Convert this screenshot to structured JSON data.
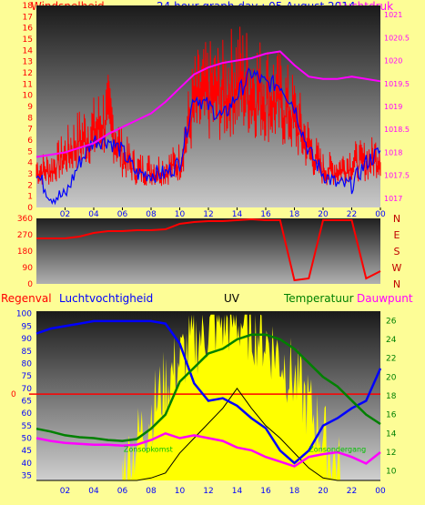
{
  "header": {
    "left_label": "Windsnelheid",
    "title": "24 hour graph day : 05 August 2014",
    "right_label": "Luchtdruk"
  },
  "bottom_header": {
    "rain": "Regenval",
    "humidity": "Luchtvochtigheid",
    "uv": "UV",
    "temperature": "Temperatuur",
    "dewpoint": "Dauwpunt"
  },
  "annotations": {
    "sunrise": "Zonsopkomst",
    "sunset": "Zonsondergang"
  },
  "colors": {
    "page_bg": "#fdfd96",
    "wind_speed": "#ff0000",
    "wind_avg": "#0000ff",
    "pressure": "#ff00ff",
    "wind_dir": "#ff0000",
    "humidity": "#0000ff",
    "uv": "#000000",
    "solar": "#ffff00",
    "temperature": "#008000",
    "dewpoint": "#ff00ff",
    "rain_line": "#ff0000"
  },
  "chart_data": [
    {
      "type": "line",
      "series_labels": [
        "Windsnelheid",
        "Luchtdruk"
      ],
      "x_ticks": [
        "02",
        "04",
        "06",
        "08",
        "10",
        "12",
        "14",
        "16",
        "18",
        "20",
        "22",
        "00"
      ],
      "y_left_ticks": [
        "0",
        "1",
        "2",
        "3",
        "4",
        "5",
        "6",
        "7",
        "8",
        "9",
        "10",
        "11",
        "12",
        "13",
        "14",
        "15",
        "16",
        "17",
        "18"
      ],
      "y_right_ticks": [
        "1017",
        "1017.5",
        "1018",
        "1018.5",
        "1019",
        "1019.5",
        "1020",
        "1020.5",
        "1021"
      ],
      "ylim_left": [
        0,
        18
      ],
      "ylim_right": [
        1016.8,
        1021.2
      ],
      "x": [
        0,
        1,
        2,
        3,
        4,
        5,
        6,
        7,
        8,
        9,
        10,
        11,
        12,
        13,
        14,
        15,
        16,
        17,
        18,
        19,
        20,
        21,
        22,
        23,
        24
      ],
      "series": [
        {
          "axis": "left",
          "values": [
            3,
            1,
            1,
            4,
            6,
            6,
            5,
            3,
            3,
            3,
            4,
            10,
            9,
            8,
            10,
            12,
            11,
            11,
            9,
            5,
            3,
            2,
            2,
            4,
            5
          ]
        },
        {
          "axis": "left",
          "values": [
            5,
            5,
            7,
            9,
            10,
            12,
            7,
            5,
            5,
            5,
            6,
            14,
            15,
            15,
            17,
            16,
            15,
            14,
            12,
            8,
            5,
            5,
            6,
            6,
            7
          ]
        },
        {
          "axis": "right",
          "values": [
            1017.9,
            1017.95,
            1018.0,
            1018.1,
            1018.2,
            1018.4,
            1018.55,
            1018.7,
            1018.85,
            1019.1,
            1019.4,
            1019.7,
            1019.85,
            1019.95,
            1020.0,
            1020.05,
            1020.15,
            1020.2,
            1019.9,
            1019.65,
            1019.6,
            1019.6,
            1019.65,
            1019.6,
            1019.55
          ]
        }
      ]
    },
    {
      "type": "line",
      "series_labels": [],
      "x_ticks": [],
      "y_ticks": [
        "0",
        "90",
        "180",
        "270",
        "360"
      ],
      "y_right_labels": [
        "N",
        "W",
        "S",
        "E",
        "N"
      ],
      "ylim": [
        0,
        360
      ],
      "x": [
        0,
        1,
        2,
        3,
        4,
        5,
        6,
        7,
        8,
        9,
        10,
        11,
        12,
        13,
        14,
        15,
        16,
        17,
        18,
        19,
        20,
        21,
        22,
        23,
        24
      ],
      "series": [
        {
          "values": [
            250,
            250,
            250,
            260,
            280,
            290,
            290,
            295,
            295,
            300,
            330,
            340,
            345,
            345,
            350,
            355,
            350,
            350,
            20,
            30,
            350,
            350,
            350,
            30,
            70
          ]
        }
      ]
    },
    {
      "type": "line",
      "series_labels": [
        "Regenval",
        "Luchtvochtigheid",
        "UV",
        "Temperatuur",
        "Dauwpunt"
      ],
      "x_ticks": [
        "02",
        "04",
        "06",
        "08",
        "10",
        "12",
        "14",
        "16",
        "18",
        "20",
        "22",
        "00"
      ],
      "y_left_ticks": [
        "35",
        "40",
        "45",
        "50",
        "55",
        "60",
        "65",
        "70",
        "75",
        "80",
        "85",
        "90",
        "95",
        "100"
      ],
      "y_right_ticks": [
        "10",
        "12",
        "14",
        "16",
        "18",
        "20",
        "22",
        "24",
        "26"
      ],
      "rain_value_label": "0",
      "ylim_left": [
        33,
        101
      ],
      "ylim_right": [
        9,
        27
      ],
      "x": [
        0,
        1,
        2,
        3,
        4,
        5,
        6,
        7,
        8,
        9,
        10,
        11,
        12,
        13,
        14,
        15,
        16,
        17,
        18,
        19,
        20,
        21,
        22,
        23,
        24
      ],
      "series": [
        {
          "name": "Luchtvochtigheid",
          "axis": "left",
          "values": [
            92,
            94,
            95,
            96,
            97,
            97,
            97,
            97,
            97,
            96,
            88,
            72,
            65,
            66,
            63,
            58,
            54,
            45,
            40,
            45,
            55,
            58,
            62,
            65,
            78
          ]
        },
        {
          "name": "Temperatuur",
          "axis": "right",
          "values": [
            14.5,
            14.2,
            13.8,
            13.6,
            13.5,
            13.3,
            13.2,
            13.4,
            14.5,
            16,
            19.5,
            21,
            22.5,
            23,
            24,
            24.5,
            24.5,
            24,
            23,
            21.5,
            20,
            19,
            17.5,
            16,
            15
          ]
        },
        {
          "name": "Dauwpunt",
          "axis": "right",
          "values": [
            13.5,
            13.2,
            13.0,
            12.9,
            12.8,
            12.8,
            12.7,
            12.8,
            13.3,
            14,
            13.5,
            13.8,
            13.5,
            13.2,
            12.5,
            12.2,
            11.5,
            11,
            10.5,
            11.5,
            11.8,
            12,
            11.5,
            10.8,
            12
          ]
        },
        {
          "name": "UV",
          "axis": "left",
          "values": [
            33,
            33,
            33,
            33,
            33,
            33,
            33,
            33,
            34,
            36,
            44,
            50,
            56,
            62,
            70,
            62,
            55,
            50,
            44,
            38,
            34,
            33,
            33,
            33,
            33
          ]
        }
      ]
    }
  ]
}
